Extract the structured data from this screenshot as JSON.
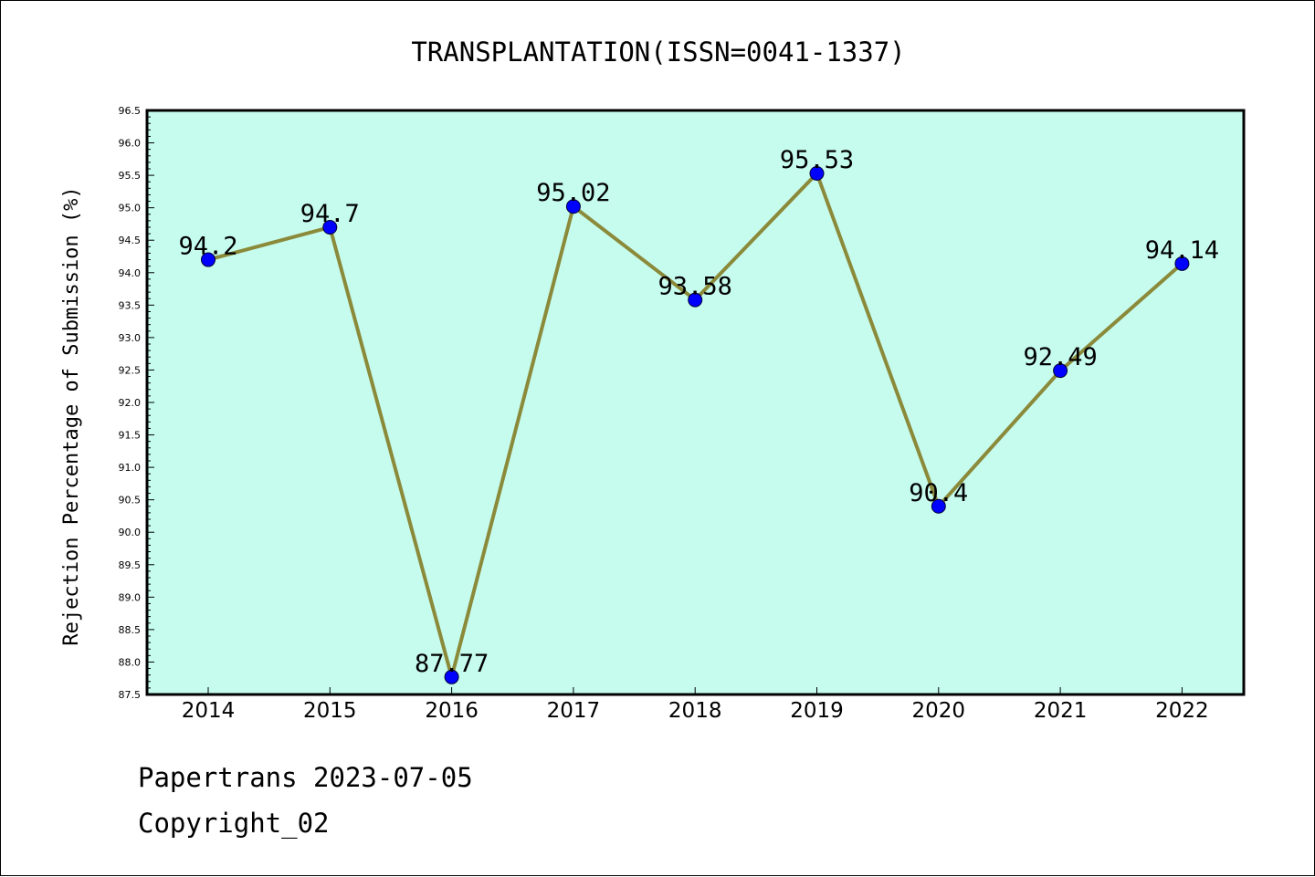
{
  "chart_data": {
    "type": "line",
    "title": "TRANSPLANTATION(ISSN=0041-1337)",
    "ylabel": "Rejection Percentage of Submission (%)",
    "xlabel": "",
    "categories": [
      "2014",
      "2015",
      "2016",
      "2017",
      "2018",
      "2019",
      "2020",
      "2021",
      "2022"
    ],
    "series": [
      {
        "values": [
          94.2,
          94.7,
          87.77,
          95.02,
          93.58,
          95.53,
          90.4,
          92.49,
          94.14
        ],
        "data_labels": [
          "94.2",
          "94.7",
          "87.77",
          "95.02",
          "93.58",
          "95.53",
          "90.4",
          "92.49",
          "94.14"
        ]
      }
    ],
    "ylim": [
      87.5,
      96.5
    ],
    "yticks": [
      "87.5",
      "88.0",
      "88.5",
      "89.0",
      "89.5",
      "90.0",
      "90.5",
      "91.0",
      "91.5",
      "92.0",
      "92.5",
      "93.0",
      "93.5",
      "94.0",
      "94.5",
      "95.0",
      "95.5",
      "96.0",
      "96.5"
    ],
    "grid": false,
    "legend": "none",
    "colors": {
      "plot_background": "#c6fcee",
      "line": "#8b8a3a",
      "marker": "#0000ff",
      "axis": "#000000"
    }
  },
  "footer": {
    "source": "Papertrans 2023-07-05",
    "copyright": "Copyright_02"
  }
}
